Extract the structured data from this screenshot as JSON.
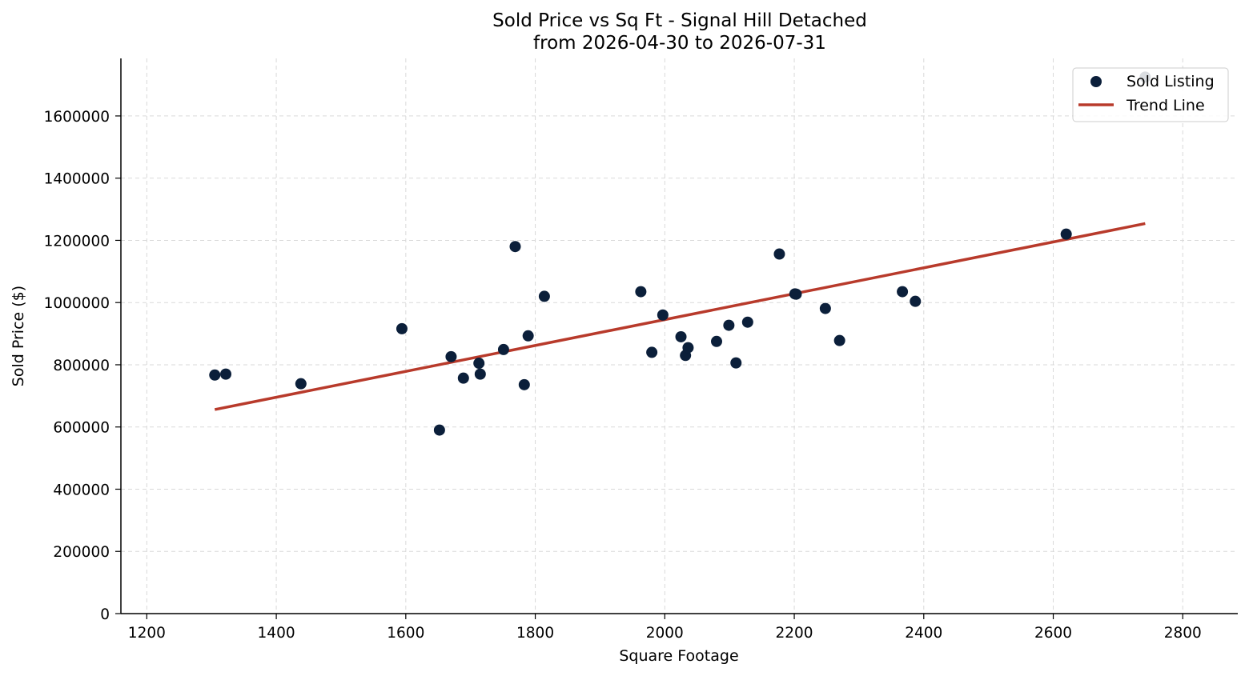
{
  "chart_data": {
    "type": "scatter",
    "title_line1": "Sold Price vs Sq Ft - Signal Hill Detached",
    "title_line2": "from 2026-04-30 to 2026-07-31",
    "xlabel": "Square Footage",
    "ylabel": "Sold Price ($)",
    "xlim": [
      1160,
      2885
    ],
    "ylim": [
      0,
      1785000
    ],
    "x_ticks": [
      1200,
      1400,
      1600,
      1800,
      2000,
      2200,
      2400,
      2600,
      2800
    ],
    "y_ticks": [
      0,
      200000,
      400000,
      600000,
      800000,
      1000000,
      1200000,
      1400000,
      1600000
    ],
    "grid": true,
    "legend_position": "top-right",
    "colors": {
      "points": "#0b1f3a",
      "trend": "#b83a2b"
    },
    "series": [
      {
        "name": "Sold Listing",
        "kind": "scatter",
        "points": [
          [
            1305,
            767000
          ],
          [
            1322,
            770000
          ],
          [
            1438,
            739000
          ],
          [
            1594,
            916000
          ],
          [
            1652,
            590000
          ],
          [
            1670,
            826000
          ],
          [
            1689,
            757000
          ],
          [
            1713,
            805000
          ],
          [
            1715,
            770000
          ],
          [
            1751,
            849000
          ],
          [
            1769,
            1180000
          ],
          [
            1783,
            736000
          ],
          [
            1789,
            893000
          ],
          [
            1814,
            1020000
          ],
          [
            1963,
            1035000
          ],
          [
            1980,
            840000
          ],
          [
            1997,
            960000
          ],
          [
            2025,
            890000
          ],
          [
            2032,
            830000
          ],
          [
            2036,
            855000
          ],
          [
            2080,
            875000
          ],
          [
            2099,
            927000
          ],
          [
            2110,
            806000
          ],
          [
            2128,
            937000
          ],
          [
            2177,
            1156000
          ],
          [
            2201,
            1028000
          ],
          [
            2203,
            1027000
          ],
          [
            2248,
            981000
          ],
          [
            2270,
            878000
          ],
          [
            2367,
            1035000
          ],
          [
            2387,
            1004000
          ],
          [
            2620,
            1220000
          ],
          [
            2742,
            1725000
          ]
        ]
      },
      {
        "name": "Trend Line",
        "kind": "line",
        "points": [
          [
            1305,
            656000
          ],
          [
            2742,
            1254000
          ]
        ]
      }
    ]
  }
}
